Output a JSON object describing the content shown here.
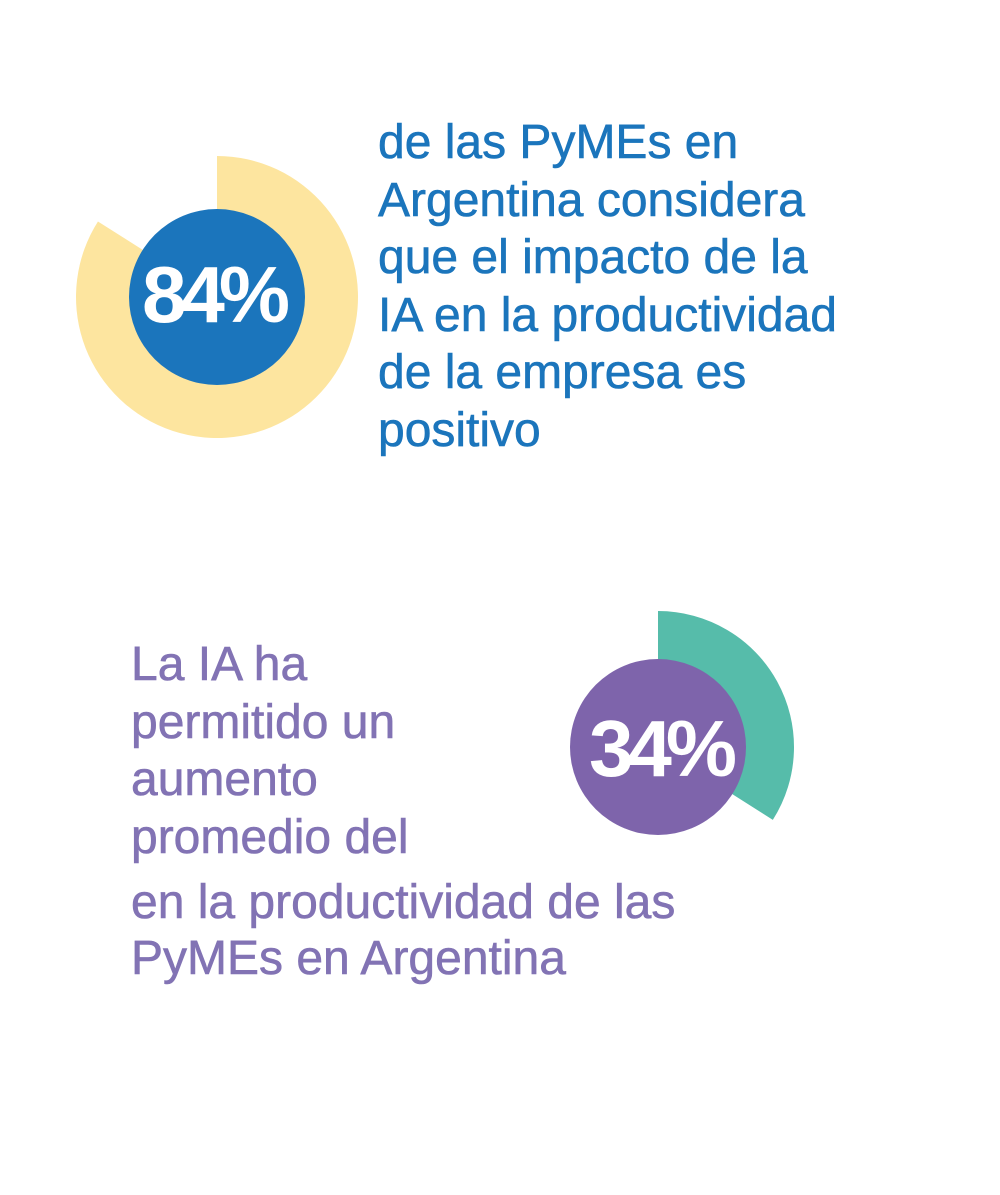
{
  "chart_data": [
    {
      "type": "pie",
      "values": [
        84
      ],
      "value_label": "84%",
      "ring_color": "#fde59f",
      "center_color": "#1b75bc",
      "text_color": "#ffffff",
      "description": "de las PyMEs en\nArgentina considera\nque el impacto de la\nIA en la productividad\nde la empresa es\npositivo"
    },
    {
      "type": "pie",
      "values": [
        34
      ],
      "value_label": "34%",
      "ring_color": "#56bcaa",
      "center_color": "#7e64ab",
      "text_color": "#ffffff",
      "description_before": "La IA ha\npermitido un\naumento\npromedio del",
      "description_after": "en la productividad de las\nPyMEs en Argentina"
    }
  ]
}
